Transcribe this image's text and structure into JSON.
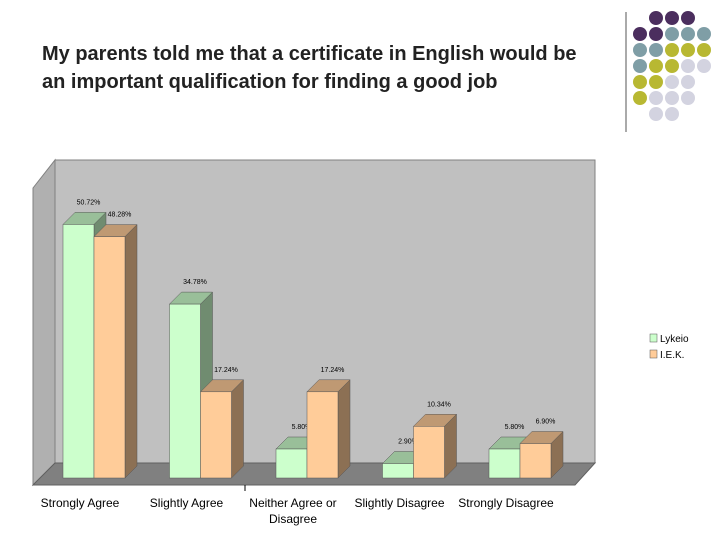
{
  "chart_data": {
    "type": "bar3d",
    "title": "My parents told me that a certificate in English would be an important qualification for finding a good job",
    "categories": [
      "Strongly Agree",
      "Slightly Agree",
      "Neither Agree or Disagree",
      "Slightly Disagree",
      "Strongly Disagree"
    ],
    "series": [
      {
        "name": "Lykeio",
        "color": "#ccffcc",
        "values": [
          50.72,
          34.78,
          5.8,
          2.9,
          5.8
        ],
        "value_labels": [
          "50.72%",
          "34.78%",
          "5.80%",
          "2.90%",
          "5.80%"
        ]
      },
      {
        "name": "I.E.K.",
        "color": "#ffcc99",
        "values": [
          48.28,
          17.24,
          17.24,
          10.34,
          6.9
        ],
        "value_labels": [
          "48.28%",
          "17.24%",
          "17.24%",
          "10.34%",
          "6.90%"
        ]
      }
    ],
    "ylim": [
      0,
      60
    ],
    "legend": "right"
  }
}
